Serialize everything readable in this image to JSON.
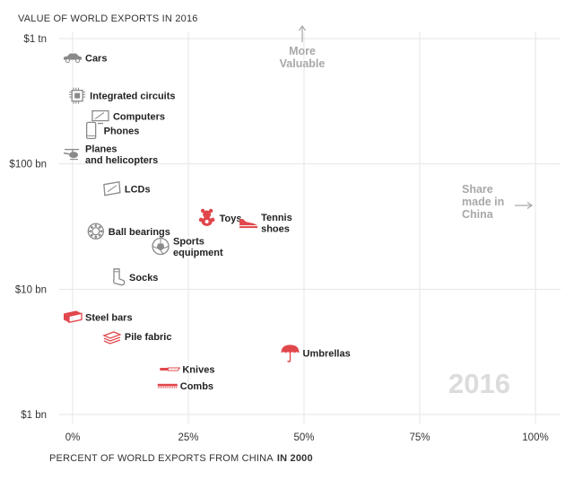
{
  "chart_data": {
    "type": "scatter",
    "title": "VALUE OF WORLD EXPORTS IN 2016",
    "xlabel": "PERCENT OF WORLD EXPORTS FROM CHINA",
    "xlabel_bold": "IN 2000",
    "ylabel": "",
    "x_scale": "linear",
    "y_scale": "log",
    "xlim": [
      -2,
      100
    ],
    "ylim": [
      1,
      1000
    ],
    "x_ticks": [
      {
        "value": 0,
        "label": "0%"
      },
      {
        "value": 25,
        "label": "25%"
      },
      {
        "value": 50,
        "label": "50%"
      },
      {
        "value": 75,
        "label": "75%"
      },
      {
        "value": 100,
        "label": "100%"
      }
    ],
    "y_ticks": [
      {
        "value": 1000,
        "label": "$1 tn"
      },
      {
        "value": 100,
        "label": "$100 bn"
      },
      {
        "value": 10,
        "label": "$10 bn"
      },
      {
        "value": 1,
        "label": "$1 bn"
      }
    ],
    "grid": true,
    "points": [
      {
        "name": "Cars",
        "x": 0,
        "y": 700,
        "icon": "car-icon",
        "color": "#8a8a8a",
        "lines": [
          "Cars"
        ]
      },
      {
        "name": "Integrated circuits",
        "x": 1,
        "y": 350,
        "icon": "chip-icon",
        "color": "#8a8a8a",
        "lines": [
          "Integrated circuits"
        ]
      },
      {
        "name": "Computers",
        "x": 6,
        "y": 240,
        "icon": "computer-icon",
        "color": "#8a8a8a",
        "lines": [
          "Computers"
        ]
      },
      {
        "name": "Phones",
        "x": 4,
        "y": 185,
        "icon": "phone-icon",
        "color": "#8a8a8a",
        "lines": [
          "Phones"
        ]
      },
      {
        "name": "Planes and helicopters",
        "x": 0,
        "y": 120,
        "icon": "helicopter-icon",
        "color": "#8a8a8a",
        "lines": [
          "Planes",
          "and helicopters"
        ]
      },
      {
        "name": "LCDs",
        "x": 8.5,
        "y": 63,
        "icon": "lcd-icon",
        "color": "#8a8a8a",
        "lines": [
          "LCDs"
        ]
      },
      {
        "name": "Toys",
        "x": 29,
        "y": 37,
        "icon": "teddy-bear-icon",
        "color": "#e0474c",
        "lines": [
          "Toys"
        ]
      },
      {
        "name": "Tennis shoes",
        "x": 38,
        "y": 34,
        "icon": "shoe-icon",
        "color": "#e0474c",
        "lines": [
          "Tennis",
          "shoes"
        ]
      },
      {
        "name": "Ball bearings",
        "x": 5,
        "y": 29,
        "icon": "bearing-icon",
        "color": "#8a8a8a",
        "lines": [
          "Ball bearings"
        ]
      },
      {
        "name": "Sports equipment",
        "x": 19,
        "y": 22,
        "icon": "ball-icon",
        "color": "#8a8a8a",
        "lines": [
          "Sports",
          "equipment"
        ]
      },
      {
        "name": "Socks",
        "x": 9.5,
        "y": 12.5,
        "icon": "sock-icon",
        "color": "#8a8a8a",
        "lines": [
          "Socks"
        ]
      },
      {
        "name": "Steel bars",
        "x": 0,
        "y": 6,
        "icon": "steel-bar-icon",
        "color": "#e0474c",
        "lines": [
          "Steel bars"
        ]
      },
      {
        "name": "Pile fabric",
        "x": 8.5,
        "y": 4.2,
        "icon": "fabric-icon",
        "color": "#e0474c",
        "lines": [
          "Pile fabric"
        ]
      },
      {
        "name": "Umbrellas",
        "x": 47,
        "y": 3.1,
        "icon": "umbrella-icon",
        "color": "#e0474c",
        "lines": [
          "Umbrellas"
        ]
      },
      {
        "name": "Knives",
        "x": 21,
        "y": 2.3,
        "icon": "knife-icon",
        "color": "#e0474c",
        "lines": [
          "Knives"
        ]
      },
      {
        "name": "Combs",
        "x": 20.5,
        "y": 1.7,
        "icon": "comb-icon",
        "color": "#e0474c",
        "lines": [
          "Combs"
        ]
      }
    ],
    "annotations": [
      {
        "id": "more-valuable",
        "lines": [
          "More",
          "Valuable"
        ],
        "arrow": "up"
      },
      {
        "id": "share-china",
        "lines": [
          "Share",
          "made in",
          "China"
        ],
        "arrow": "right"
      }
    ],
    "year_label": "2016"
  }
}
